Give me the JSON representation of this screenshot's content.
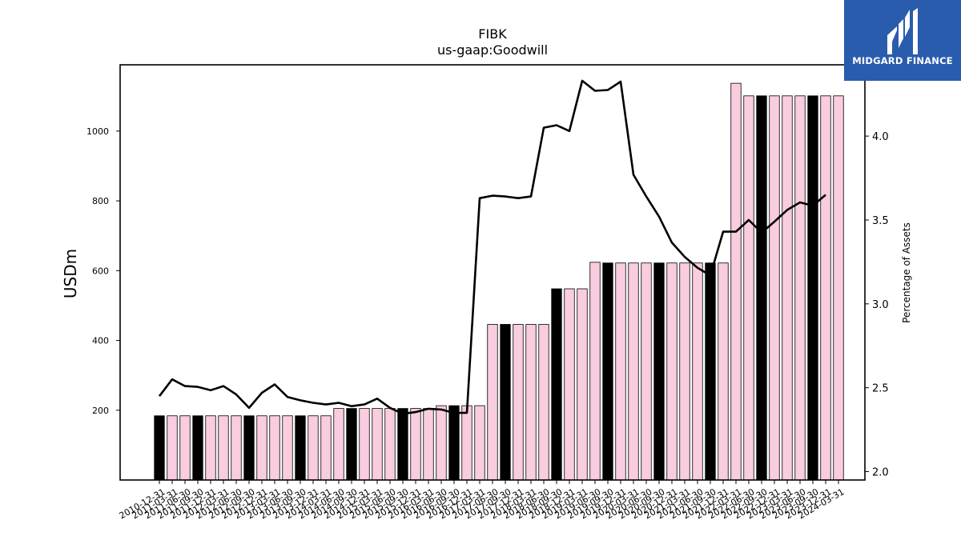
{
  "logo": {
    "text": "MIDGARD FINANCE",
    "bg_color": "#2a5cad"
  },
  "chart_data": {
    "type": "bar",
    "title": "FIBK",
    "subtitle": "us-gaap:Goodwill",
    "ylabel": "USDm",
    "y2label": "Percentage of Assets",
    "ylim": [
      0,
      1190
    ],
    "y2lim": [
      1.95,
      4.425
    ],
    "yticks": [
      200,
      400,
      600,
      800,
      1000
    ],
    "y2ticks": [
      2.0,
      2.5,
      3.0,
      3.5,
      4.0
    ],
    "y2tick_labels": [
      "2.0",
      "2.5",
      "3.0",
      "3.5",
      "4.0"
    ],
    "grid": false,
    "colors": {
      "bar_default": "#f9cce0",
      "bar_highlight": "#000000",
      "bar_edge": "#000000",
      "line": "#000000"
    },
    "categories": [
      "2010-12-31",
      "2011-03-31",
      "2011-06-30",
      "2011-09-30",
      "2011-12-31",
      "2012-03-31",
      "2012-06-30",
      "2012-09-30",
      "2012-12-31",
      "2013-03-31",
      "2013-06-30",
      "2013-09-30",
      "2013-12-31",
      "2014-03-31",
      "2014-06-30",
      "2014-09-30",
      "2014-12-31",
      "2015-03-31",
      "2015-06-30",
      "2015-09-30",
      "2015-12-31",
      "2016-03-31",
      "2016-06-30",
      "2016-09-30",
      "2016-12-31",
      "2017-03-31",
      "2017-06-30",
      "2017-09-30",
      "2017-12-31",
      "2018-03-31",
      "2018-06-30",
      "2018-09-30",
      "2018-12-31",
      "2019-03-31",
      "2019-06-30",
      "2019-09-30",
      "2019-12-31",
      "2020-03-31",
      "2020-06-30",
      "2020-09-30",
      "2020-12-31",
      "2021-03-31",
      "2021-06-30",
      "2021-09-30",
      "2021-12-31",
      "2022-03-31",
      "2022-06-30",
      "2022-09-30",
      "2022-12-31",
      "2023-03-31",
      "2023-06-30",
      "2023-09-30",
      "2023-12-31",
      "2024-03-31"
    ],
    "series": [
      {
        "type": "bar",
        "values": [
          184,
          184,
          184,
          184,
          184,
          184,
          184,
          184,
          184,
          184,
          184,
          184,
          184,
          184,
          205,
          205,
          205,
          205,
          205,
          205,
          205,
          205,
          213,
          213,
          213,
          213,
          446,
          446,
          446,
          446,
          446,
          548,
          548,
          548,
          624,
          622,
          622,
          622,
          622,
          622,
          622,
          622,
          622,
          622,
          622,
          1137,
          1101,
          1101,
          1101,
          1101,
          1101,
          1101,
          1101,
          1101
        ],
        "highlight": [
          true,
          false,
          false,
          true,
          false,
          false,
          false,
          true,
          false,
          false,
          false,
          true,
          false,
          false,
          false,
          true,
          false,
          false,
          false,
          true,
          false,
          false,
          false,
          true,
          false,
          false,
          false,
          true,
          false,
          false,
          false,
          true,
          false,
          false,
          false,
          true,
          false,
          false,
          false,
          true,
          false,
          false,
          false,
          true,
          false,
          false,
          false,
          true,
          false,
          false,
          false,
          true,
          false,
          false
        ]
      },
      {
        "type": "line",
        "axis": "right",
        "values": [
          2.45,
          2.55,
          2.51,
          2.505,
          2.485,
          2.51,
          2.46,
          2.38,
          2.47,
          2.52,
          2.445,
          2.425,
          2.41,
          2.4,
          2.41,
          2.39,
          2.4,
          2.435,
          2.38,
          2.345,
          2.355,
          2.375,
          2.37,
          2.35,
          2.35,
          3.63,
          3.645,
          3.64,
          3.63,
          3.64,
          4.05,
          4.065,
          4.03,
          4.33,
          4.27,
          4.275,
          4.325,
          3.77,
          3.64,
          3.52,
          3.365,
          3.28,
          3.215,
          3.17,
          3.43,
          3.43,
          3.5,
          3.425,
          3.49,
          3.56,
          3.605,
          3.585,
          3.65,
          null
        ]
      }
    ]
  }
}
